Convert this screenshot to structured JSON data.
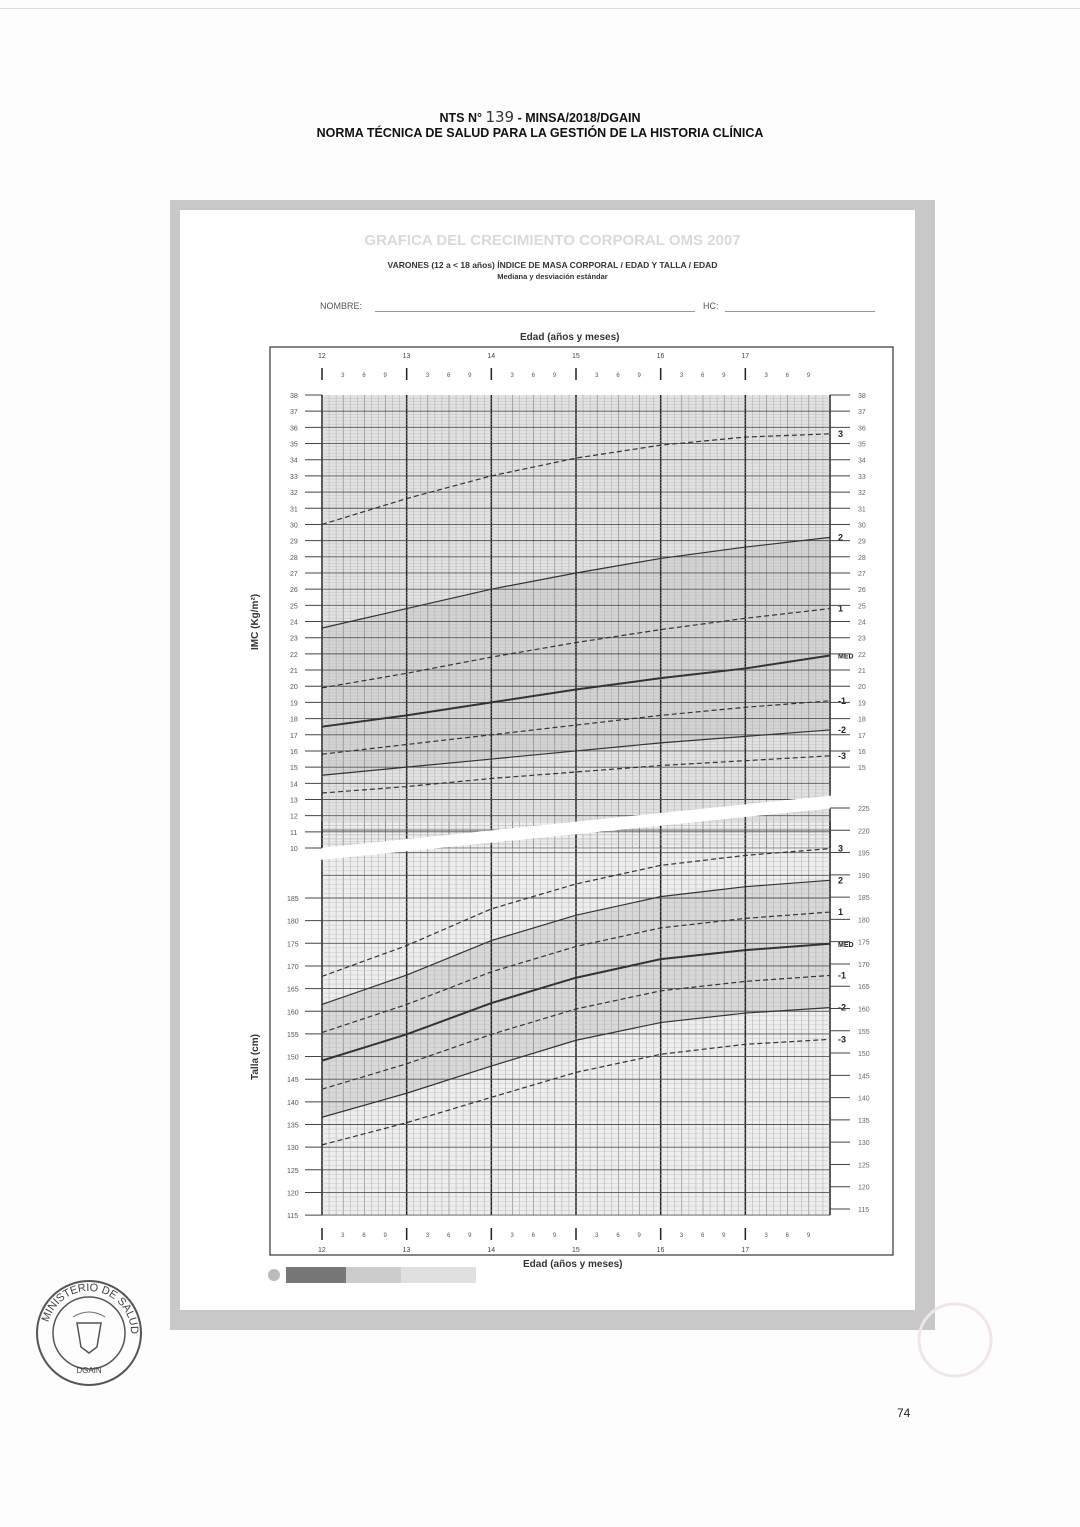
{
  "header": {
    "line1_prefix": "NTS N°",
    "line1_number": "139",
    "line1_suffix": "- MINSA/2018/DGAIN",
    "line2": "NORMA TÉCNICA DE SALUD PARA LA GESTIÓN DE LA HISTORIA CLÍNICA"
  },
  "form": {
    "ghost_title": "GRAFICA DEL CRECIMIENTO CORPORAL OMS 2007",
    "subtitle": "VARONES (12 a < 18 años) ÍNDICE DE MASA CORPORAL / EDAD Y TALLA / EDAD",
    "subtitle2": "Mediana y desviación estándar",
    "name_label": "NOMBRE:",
    "hc_label": "HC:"
  },
  "page_number": "74",
  "stamp_text": "MINISTERIO DE SALUD",
  "stamp_sub": "DGAIN",
  "chart_data": [
    {
      "type": "line",
      "title": "ÍNDICE DE MASA CORPORAL / EDAD",
      "xlabel": "Edad (años y meses)",
      "ylabel": "IMC (Kg/m²)",
      "x": [
        12,
        13,
        14,
        15,
        16,
        17,
        18
      ],
      "xlim": [
        12,
        18
      ],
      "ylim": [
        10,
        38
      ],
      "x_ticks_major": [
        "12",
        "13",
        "14",
        "15",
        "16",
        "17"
      ],
      "x_ticks_minor": [
        "3",
        "6",
        "9"
      ],
      "y_ticks": [
        38,
        37,
        36,
        35,
        34,
        33,
        32,
        31,
        30,
        29,
        28,
        27,
        26,
        25,
        24,
        23,
        22,
        21,
        20,
        19,
        18,
        17,
        16,
        15,
        14,
        13,
        12,
        11,
        10
      ],
      "right_ticks": [
        38,
        37,
        36,
        35,
        34,
        33,
        32,
        31,
        30,
        29,
        28,
        27,
        26,
        25,
        24,
        23,
        22,
        21,
        20,
        19,
        18,
        17,
        16,
        15
      ],
      "grid": true,
      "series": [
        {
          "name": "3",
          "style": "dashed",
          "values": [
            30.0,
            31.6,
            33.0,
            34.1,
            34.9,
            35.4,
            35.6
          ]
        },
        {
          "name": "2",
          "style": "solid",
          "values": [
            23.6,
            24.8,
            26.0,
            27.0,
            27.9,
            28.6,
            29.2
          ]
        },
        {
          "name": "1",
          "style": "dashed",
          "values": [
            19.9,
            20.8,
            21.8,
            22.7,
            23.5,
            24.2,
            24.8
          ]
        },
        {
          "name": "MED",
          "style": "solid-bold",
          "values": [
            17.5,
            18.2,
            19.0,
            19.8,
            20.5,
            21.1,
            21.9
          ]
        },
        {
          "name": "-1",
          "style": "dashed",
          "values": [
            15.8,
            16.4,
            17.0,
            17.6,
            18.2,
            18.7,
            19.1
          ]
        },
        {
          "name": "-2",
          "style": "solid",
          "values": [
            14.5,
            15.0,
            15.5,
            16.0,
            16.5,
            16.9,
            17.3
          ]
        },
        {
          "name": "-3",
          "style": "dashed",
          "values": [
            13.4,
            13.8,
            14.3,
            14.7,
            15.1,
            15.4,
            15.7
          ]
        }
      ]
    },
    {
      "type": "line",
      "title": "TALLA / EDAD",
      "xlabel": "Edad (años y meses)",
      "ylabel": "Talla (cm)",
      "x": [
        12,
        13,
        14,
        15,
        16,
        17,
        18
      ],
      "xlim": [
        12,
        18
      ],
      "ylim": [
        115,
        200
      ],
      "y_ticks": [
        185,
        180,
        175,
        170,
        165,
        160,
        155,
        150,
        145,
        140,
        135,
        130,
        125,
        120,
        115
      ],
      "right_ticks": [
        "225",
        "220",
        "195",
        "190",
        "185",
        "180",
        "175",
        "170",
        "165",
        "160",
        "155",
        "150",
        "145",
        "140",
        "135",
        "130",
        "125",
        "120",
        "115"
      ],
      "grid": true,
      "series": [
        {
          "name": "3",
          "style": "dashed",
          "values": [
            167.7,
            174.5,
            182.6,
            188.1,
            192.2,
            194.4,
            195.9
          ]
        },
        {
          "name": "2",
          "style": "solid",
          "values": [
            161.5,
            168.0,
            175.6,
            181.2,
            185.3,
            187.5,
            188.9
          ]
        },
        {
          "name": "1",
          "style": "dashed",
          "values": [
            155.3,
            161.5,
            168.7,
            174.3,
            178.4,
            180.5,
            181.9
          ]
        },
        {
          "name": "MED",
          "style": "solid-bold",
          "values": [
            149.1,
            154.9,
            161.8,
            167.4,
            171.5,
            173.5,
            174.9
          ]
        },
        {
          "name": "-1",
          "style": "dashed",
          "values": [
            142.8,
            148.4,
            154.9,
            160.5,
            164.5,
            166.6,
            167.9
          ]
        },
        {
          "name": "-2",
          "style": "solid",
          "values": [
            136.6,
            141.9,
            147.9,
            153.6,
            157.5,
            159.6,
            160.8
          ]
        },
        {
          "name": "-3",
          "style": "dashed",
          "values": [
            130.5,
            135.4,
            141.0,
            146.5,
            150.5,
            152.7,
            153.8
          ]
        }
      ]
    }
  ]
}
